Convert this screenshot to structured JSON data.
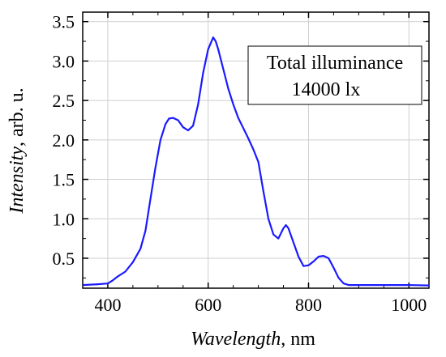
{
  "chart_data": {
    "type": "line",
    "title": "",
    "xlabel_italic": "Wavelength",
    "xlabel_unit": ", nm",
    "ylabel_italic": "Intensity",
    "ylabel_unit": ", arb. u.",
    "xlim": [
      350,
      1040
    ],
    "ylim": [
      0.12,
      3.62
    ],
    "xticks": [
      400,
      600,
      800,
      1000
    ],
    "yticks": [
      0.5,
      1.0,
      1.5,
      2.0,
      2.5,
      3.0,
      3.5
    ],
    "ytick_labels": [
      "0.5",
      "1.0",
      "1.5",
      "2.0",
      "2.5",
      "3.0",
      "3.5"
    ],
    "grid": true,
    "line_color": "#1a1aff",
    "annotation": {
      "line1": "Total illuminance",
      "line2": "14000 lx",
      "placement": "top-right"
    },
    "series": [
      {
        "x": [
          350,
          380,
          400,
          410,
          420,
          435,
          450,
          465,
          475,
          485,
          495,
          505,
          515,
          522,
          530,
          540,
          550,
          560,
          570,
          580,
          590,
          600,
          610,
          615,
          620,
          630,
          640,
          650,
          660,
          670,
          680,
          690,
          700,
          710,
          720,
          730,
          740,
          750,
          755,
          760,
          770,
          780,
          790,
          800,
          810,
          820,
          830,
          840,
          850,
          860,
          870,
          880,
          900,
          950,
          1000,
          1040
        ],
        "y": [
          0.16,
          0.17,
          0.18,
          0.22,
          0.27,
          0.33,
          0.45,
          0.62,
          0.85,
          1.25,
          1.65,
          2.0,
          2.2,
          2.27,
          2.28,
          2.25,
          2.16,
          2.12,
          2.18,
          2.45,
          2.85,
          3.15,
          3.3,
          3.25,
          3.15,
          2.9,
          2.65,
          2.45,
          2.28,
          2.15,
          2.02,
          1.88,
          1.72,
          1.35,
          1.0,
          0.8,
          0.75,
          0.88,
          0.92,
          0.88,
          0.7,
          0.52,
          0.4,
          0.41,
          0.46,
          0.52,
          0.53,
          0.5,
          0.38,
          0.25,
          0.18,
          0.16,
          0.16,
          0.16,
          0.16,
          0.155
        ]
      }
    ]
  }
}
